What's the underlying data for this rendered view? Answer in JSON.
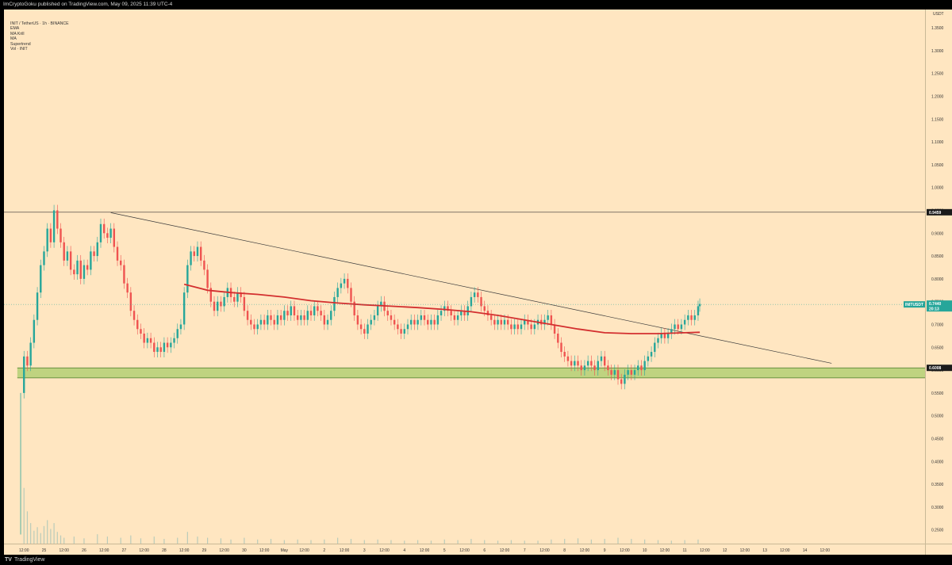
{
  "header": {
    "text": "ImCryptoGoku published on TradingView.com, May 09, 2025 11:39 UTC-4"
  },
  "legend": {
    "symbol_line": "INIT / TetherUS · 1h · BINANCE",
    "indicators": [
      "EMA",
      "MA Krill",
      "MA",
      "Supertrend",
      "Vol · INIT"
    ]
  },
  "footer": {
    "brand": "TradingView"
  },
  "scale_unit": "USDT",
  "chart_data": {
    "type": "candlestick",
    "symbol": "INIT / TetherUS",
    "interval": "1h",
    "exchange": "BINANCE",
    "y_axis": {
      "min": 0.22,
      "max": 1.39,
      "ticks": [
        0.25,
        0.3,
        0.35,
        0.4,
        0.45,
        0.5,
        0.55,
        0.6,
        0.65,
        0.7,
        0.75,
        0.8,
        0.85,
        0.9,
        0.95,
        1.0,
        1.05,
        1.1,
        1.15,
        1.2,
        1.25,
        1.3,
        1.35
      ],
      "tick_labels": [
        "0.2500",
        "0.3000",
        "0.3500",
        "0.4000",
        "0.4500",
        "0.5000",
        "0.5500",
        "0.6000",
        "0.6500",
        "0.7000",
        "0.7500",
        "0.8000",
        "0.8500",
        "0.9000",
        "0.9500",
        "1.0000",
        "1.0500",
        "1.1000",
        "1.1500",
        "1.2000",
        "1.2500",
        "1.3000",
        "1.3500"
      ]
    },
    "x_axis": {
      "start_hour": -12,
      "end_hour": 540,
      "labels": [
        {
          "label": "12:00",
          "h": 0
        },
        {
          "label": "25",
          "h": 12
        },
        {
          "label": "12:00",
          "h": 24
        },
        {
          "label": "26",
          "h": 36
        },
        {
          "label": "12:00",
          "h": 48
        },
        {
          "label": "27",
          "h": 60
        },
        {
          "label": "12:00",
          "h": 72
        },
        {
          "label": "28",
          "h": 84
        },
        {
          "label": "12:00",
          "h": 96
        },
        {
          "label": "29",
          "h": 108
        },
        {
          "label": "12:00",
          "h": 120
        },
        {
          "label": "30",
          "h": 132
        },
        {
          "label": "12:00",
          "h": 144
        },
        {
          "label": "May",
          "h": 156
        },
        {
          "label": "12:00",
          "h": 168
        },
        {
          "label": "2",
          "h": 180
        },
        {
          "label": "12:00",
          "h": 192
        },
        {
          "label": "3",
          "h": 204
        },
        {
          "label": "12:00",
          "h": 216
        },
        {
          "label": "4",
          "h": 228
        },
        {
          "label": "12:00",
          "h": 240
        },
        {
          "label": "5",
          "h": 252
        },
        {
          "label": "12:00",
          "h": 264
        },
        {
          "label": "6",
          "h": 276
        },
        {
          "label": "12:00",
          "h": 288
        },
        {
          "label": "7",
          "h": 300
        },
        {
          "label": "12:00",
          "h": 312
        },
        {
          "label": "8",
          "h": 324
        },
        {
          "label": "12:00",
          "h": 336
        },
        {
          "label": "9",
          "h": 348
        },
        {
          "label": "12:00",
          "h": 360
        },
        {
          "label": "10",
          "h": 372
        },
        {
          "label": "12:00",
          "h": 384
        },
        {
          "label": "11",
          "h": 396
        },
        {
          "label": "12:00",
          "h": 408
        },
        {
          "label": "12",
          "h": 420
        },
        {
          "label": "12:00",
          "h": 432
        },
        {
          "label": "13",
          "h": 444
        },
        {
          "label": "12:00",
          "h": 456
        },
        {
          "label": "14",
          "h": 468
        },
        {
          "label": "12:00",
          "h": 480
        }
      ]
    },
    "price_path": [
      [
        -2,
        0.55
      ],
      [
        0,
        0.63
      ],
      [
        2,
        0.61
      ],
      [
        4,
        0.66
      ],
      [
        6,
        0.71
      ],
      [
        8,
        0.77
      ],
      [
        10,
        0.83
      ],
      [
        12,
        0.86
      ],
      [
        14,
        0.91
      ],
      [
        16,
        0.88
      ],
      [
        18,
        0.95
      ],
      [
        20,
        0.91
      ],
      [
        22,
        0.88
      ],
      [
        24,
        0.84
      ],
      [
        26,
        0.86
      ],
      [
        28,
        0.82
      ],
      [
        30,
        0.81
      ],
      [
        32,
        0.84
      ],
      [
        34,
        0.8
      ],
      [
        36,
        0.83
      ],
      [
        38,
        0.82
      ],
      [
        40,
        0.86
      ],
      [
        42,
        0.85
      ],
      [
        44,
        0.88
      ],
      [
        46,
        0.92
      ],
      [
        48,
        0.9
      ],
      [
        50,
        0.89
      ],
      [
        52,
        0.91
      ],
      [
        54,
        0.87
      ],
      [
        56,
        0.84
      ],
      [
        58,
        0.83
      ],
      [
        60,
        0.79
      ],
      [
        62,
        0.77
      ],
      [
        64,
        0.73
      ],
      [
        66,
        0.71
      ],
      [
        68,
        0.69
      ],
      [
        70,
        0.68
      ],
      [
        72,
        0.66
      ],
      [
        74,
        0.67
      ],
      [
        76,
        0.66
      ],
      [
        78,
        0.64
      ],
      [
        80,
        0.65
      ],
      [
        82,
        0.64
      ],
      [
        84,
        0.66
      ],
      [
        86,
        0.65
      ],
      [
        88,
        0.66
      ],
      [
        90,
        0.67
      ],
      [
        92,
        0.69
      ],
      [
        94,
        0.7
      ],
      [
        96,
        0.77
      ],
      [
        98,
        0.83
      ],
      [
        100,
        0.86
      ],
      [
        102,
        0.85
      ],
      [
        104,
        0.87
      ],
      [
        106,
        0.84
      ],
      [
        108,
        0.82
      ],
      [
        110,
        0.78
      ],
      [
        112,
        0.75
      ],
      [
        114,
        0.73
      ],
      [
        116,
        0.75
      ],
      [
        118,
        0.74
      ],
      [
        120,
        0.76
      ],
      [
        122,
        0.78
      ],
      [
        124,
        0.76
      ],
      [
        126,
        0.75
      ],
      [
        128,
        0.77
      ],
      [
        130,
        0.76
      ],
      [
        132,
        0.73
      ],
      [
        134,
        0.71
      ],
      [
        136,
        0.7
      ],
      [
        138,
        0.69
      ],
      [
        140,
        0.7
      ],
      [
        142,
        0.71
      ],
      [
        144,
        0.7
      ],
      [
        146,
        0.72
      ],
      [
        148,
        0.71
      ],
      [
        150,
        0.7
      ],
      [
        152,
        0.72
      ],
      [
        154,
        0.71
      ],
      [
        156,
        0.73
      ],
      [
        158,
        0.72
      ],
      [
        160,
        0.74
      ],
      [
        162,
        0.72
      ],
      [
        164,
        0.71
      ],
      [
        166,
        0.72
      ],
      [
        168,
        0.71
      ],
      [
        170,
        0.73
      ],
      [
        172,
        0.72
      ],
      [
        174,
        0.74
      ],
      [
        176,
        0.73
      ],
      [
        178,
        0.72
      ],
      [
        180,
        0.7
      ],
      [
        182,
        0.71
      ],
      [
        184,
        0.73
      ],
      [
        186,
        0.76
      ],
      [
        188,
        0.78
      ],
      [
        190,
        0.79
      ],
      [
        192,
        0.8
      ],
      [
        194,
        0.78
      ],
      [
        196,
        0.75
      ],
      [
        198,
        0.72
      ],
      [
        200,
        0.7
      ],
      [
        202,
        0.69
      ],
      [
        204,
        0.68
      ],
      [
        206,
        0.7
      ],
      [
        208,
        0.71
      ],
      [
        210,
        0.72
      ],
      [
        212,
        0.74
      ],
      [
        214,
        0.75
      ],
      [
        216,
        0.73
      ],
      [
        218,
        0.72
      ],
      [
        220,
        0.71
      ],
      [
        222,
        0.7
      ],
      [
        224,
        0.69
      ],
      [
        226,
        0.68
      ],
      [
        228,
        0.69
      ],
      [
        230,
        0.7
      ],
      [
        232,
        0.71
      ],
      [
        234,
        0.7
      ],
      [
        236,
        0.71
      ],
      [
        238,
        0.72
      ],
      [
        240,
        0.71
      ],
      [
        242,
        0.7
      ],
      [
        244,
        0.71
      ],
      [
        246,
        0.7
      ],
      [
        248,
        0.72
      ],
      [
        250,
        0.73
      ],
      [
        252,
        0.74
      ],
      [
        254,
        0.73
      ],
      [
        256,
        0.72
      ],
      [
        258,
        0.71
      ],
      [
        260,
        0.72
      ],
      [
        262,
        0.73
      ],
      [
        264,
        0.72
      ],
      [
        266,
        0.74
      ],
      [
        268,
        0.76
      ],
      [
        270,
        0.77
      ],
      [
        272,
        0.76
      ],
      [
        274,
        0.74
      ],
      [
        276,
        0.73
      ],
      [
        278,
        0.72
      ],
      [
        280,
        0.71
      ],
      [
        282,
        0.7
      ],
      [
        284,
        0.71
      ],
      [
        286,
        0.7
      ],
      [
        288,
        0.71
      ],
      [
        290,
        0.7
      ],
      [
        292,
        0.69
      ],
      [
        294,
        0.7
      ],
      [
        296,
        0.69
      ],
      [
        298,
        0.7
      ],
      [
        300,
        0.71
      ],
      [
        302,
        0.7
      ],
      [
        304,
        0.69
      ],
      [
        306,
        0.7
      ],
      [
        308,
        0.71
      ],
      [
        310,
        0.7
      ],
      [
        312,
        0.71
      ],
      [
        314,
        0.72
      ],
      [
        316,
        0.7
      ],
      [
        318,
        0.68
      ],
      [
        320,
        0.66
      ],
      [
        322,
        0.64
      ],
      [
        324,
        0.63
      ],
      [
        326,
        0.62
      ],
      [
        328,
        0.61
      ],
      [
        330,
        0.62
      ],
      [
        332,
        0.61
      ],
      [
        334,
        0.6
      ],
      [
        336,
        0.61
      ],
      [
        338,
        0.62
      ],
      [
        340,
        0.61
      ],
      [
        342,
        0.6
      ],
      [
        344,
        0.62
      ],
      [
        346,
        0.63
      ],
      [
        348,
        0.61
      ],
      [
        350,
        0.6
      ],
      [
        352,
        0.59
      ],
      [
        354,
        0.6
      ],
      [
        356,
        0.58
      ],
      [
        358,
        0.57
      ],
      [
        360,
        0.59
      ],
      [
        362,
        0.6
      ],
      [
        364,
        0.59
      ],
      [
        366,
        0.6
      ],
      [
        368,
        0.61
      ],
      [
        370,
        0.6
      ],
      [
        372,
        0.62
      ],
      [
        374,
        0.63
      ],
      [
        376,
        0.64
      ],
      [
        378,
        0.66
      ],
      [
        380,
        0.67
      ],
      [
        382,
        0.68
      ],
      [
        384,
        0.67
      ],
      [
        386,
        0.68
      ],
      [
        388,
        0.69
      ],
      [
        390,
        0.7
      ],
      [
        392,
        0.69
      ],
      [
        394,
        0.7
      ],
      [
        396,
        0.71
      ],
      [
        398,
        0.72
      ],
      [
        400,
        0.71
      ],
      [
        402,
        0.72
      ],
      [
        404,
        0.74
      ],
      [
        405,
        0.745
      ]
    ],
    "support_zone": {
      "low": 0.583,
      "high": 0.605,
      "label": "0.6008"
    },
    "resistance_line": {
      "price": 0.9459,
      "label": "0.9459"
    },
    "trendline": {
      "from": [
        52,
        0.945
      ],
      "to": [
        484,
        0.615
      ]
    },
    "ma_line": [
      [
        96,
        0.788
      ],
      [
        110,
        0.775
      ],
      [
        124,
        0.77
      ],
      [
        140,
        0.766
      ],
      [
        156,
        0.76
      ],
      [
        172,
        0.752
      ],
      [
        188,
        0.747
      ],
      [
        204,
        0.743
      ],
      [
        220,
        0.74
      ],
      [
        236,
        0.737
      ],
      [
        252,
        0.733
      ],
      [
        268,
        0.728
      ],
      [
        284,
        0.72
      ],
      [
        300,
        0.71
      ],
      [
        316,
        0.7
      ],
      [
        332,
        0.69
      ],
      [
        348,
        0.682
      ],
      [
        364,
        0.68
      ],
      [
        380,
        0.68
      ],
      [
        396,
        0.682
      ],
      [
        405,
        0.683
      ]
    ],
    "current_price": {
      "price": 0.744,
      "label": "0.7440",
      "symbol_label": "INITUSDT",
      "countdown": "20:13"
    },
    "colors": {
      "background": "#ffe6c1",
      "candle_up": "#26a69a",
      "candle_down": "#ef5350",
      "ma": "#d32f2f",
      "zone": "#8bc34a",
      "trendline": "#3a3a3a"
    },
    "volume": [
      [
        0,
        0.95
      ],
      [
        2,
        0.55
      ],
      [
        4,
        0.35
      ],
      [
        6,
        0.22
      ],
      [
        8,
        0.28
      ],
      [
        10,
        0.18
      ],
      [
        12,
        0.3
      ],
      [
        14,
        0.4
      ],
      [
        16,
        0.25
      ],
      [
        18,
        0.35
      ],
      [
        20,
        0.2
      ],
      [
        22,
        0.14
      ],
      [
        24,
        0.1
      ],
      [
        30,
        0.12
      ],
      [
        36,
        0.09
      ],
      [
        44,
        0.16
      ],
      [
        50,
        0.12
      ],
      [
        58,
        0.1
      ],
      [
        64,
        0.14
      ],
      [
        70,
        0.09
      ],
      [
        78,
        0.12
      ],
      [
        84,
        0.08
      ],
      [
        92,
        0.1
      ],
      [
        98,
        0.2
      ],
      [
        104,
        0.12
      ],
      [
        110,
        0.1
      ],
      [
        118,
        0.09
      ],
      [
        124,
        0.07
      ],
      [
        132,
        0.1
      ],
      [
        140,
        0.07
      ],
      [
        148,
        0.08
      ],
      [
        156,
        0.06
      ],
      [
        164,
        0.07
      ],
      [
        172,
        0.06
      ],
      [
        180,
        0.07
      ],
      [
        188,
        0.1
      ],
      [
        196,
        0.08
      ],
      [
        204,
        0.06
      ],
      [
        212,
        0.07
      ],
      [
        220,
        0.06
      ],
      [
        228,
        0.05
      ],
      [
        236,
        0.06
      ],
      [
        244,
        0.05
      ],
      [
        252,
        0.07
      ],
      [
        260,
        0.06
      ],
      [
        268,
        0.08
      ],
      [
        276,
        0.06
      ],
      [
        284,
        0.05
      ],
      [
        292,
        0.06
      ],
      [
        300,
        0.05
      ],
      [
        308,
        0.05
      ],
      [
        316,
        0.07
      ],
      [
        324,
        0.08
      ],
      [
        332,
        0.09
      ],
      [
        340,
        0.07
      ],
      [
        348,
        0.08
      ],
      [
        356,
        0.1
      ],
      [
        364,
        0.08
      ],
      [
        372,
        0.07
      ],
      [
        380,
        0.06
      ],
      [
        388,
        0.05
      ],
      [
        396,
        0.06
      ],
      [
        404,
        0.07
      ]
    ]
  }
}
